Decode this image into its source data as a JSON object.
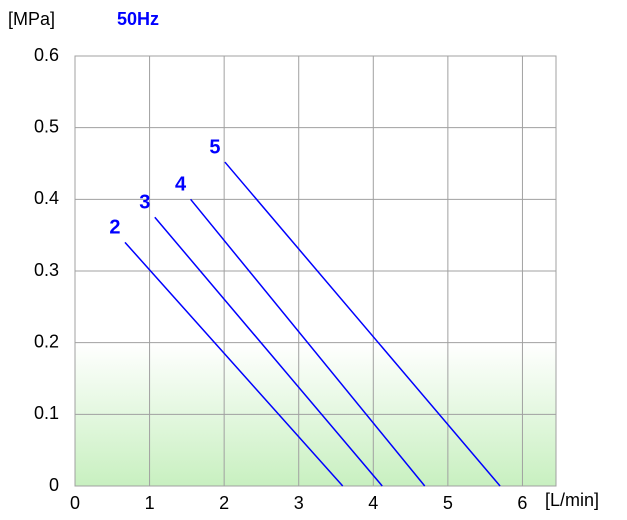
{
  "chart_data": {
    "type": "line",
    "title": "50Hz",
    "y_label": "[MPa]",
    "x_label": "[L/min]",
    "xlim": [
      0,
      6.45
    ],
    "xticks": [
      0,
      1,
      2,
      3,
      4,
      5,
      6
    ],
    "ylim": [
      0,
      0.6
    ],
    "yticks": [
      0,
      0.1,
      0.2,
      0.3,
      0.4,
      0.5,
      0.6
    ],
    "grid": true,
    "series": [
      {
        "name": "2",
        "color": "#0000ff",
        "x": [
          0.67,
          3.59
        ],
        "values": [
          0.34,
          0
        ]
      },
      {
        "name": "3",
        "color": "#0000ff",
        "x": [
          1.07,
          4.12
        ],
        "values": [
          0.375,
          0
        ]
      },
      {
        "name": "4",
        "color": "#0000ff",
        "x": [
          1.55,
          4.69
        ],
        "values": [
          0.4,
          0
        ]
      },
      {
        "name": "5",
        "color": "#0000ff",
        "x": [
          2.01,
          5.7
        ],
        "values": [
          0.452,
          0
        ]
      }
    ]
  }
}
